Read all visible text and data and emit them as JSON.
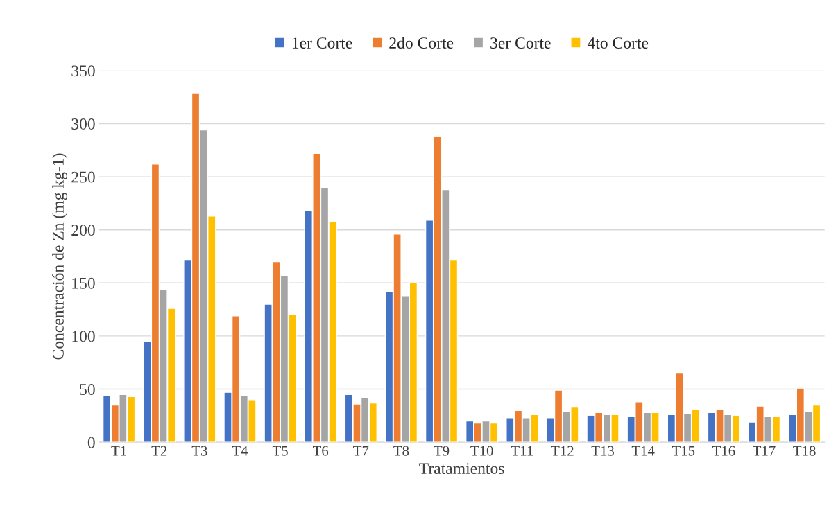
{
  "chart_data": {
    "type": "bar",
    "xlabel": "Tratamientos",
    "ylabel": "Concentración de Zn (mg kg-1)",
    "categories": [
      "T1",
      "T2",
      "T3",
      "T4",
      "T5",
      "T6",
      "T7",
      "T8",
      "T9",
      "T10",
      "T11",
      "T12",
      "T13",
      "T14",
      "T15",
      "T16",
      "T17",
      "T18"
    ],
    "series": [
      {
        "name": "1er Corte",
        "color": "#4472c4",
        "values": [
          44,
          95,
          172,
          47,
          130,
          218,
          45,
          142,
          209,
          20,
          23,
          23,
          25,
          24,
          26,
          28,
          19,
          26
        ]
      },
      {
        "name": "2do Corte",
        "color": "#ed7d31",
        "values": [
          35,
          262,
          329,
          119,
          170,
          272,
          36,
          196,
          288,
          18,
          30,
          49,
          28,
          38,
          65,
          31,
          34,
          51
        ]
      },
      {
        "name": "3er Corte",
        "color": "#a5a5a5",
        "values": [
          45,
          144,
          294,
          44,
          157,
          240,
          42,
          138,
          238,
          20,
          23,
          29,
          26,
          28,
          27,
          26,
          24,
          29
        ]
      },
      {
        "name": "4to Corte",
        "color": "#ffc000",
        "values": [
          43,
          126,
          213,
          40,
          120,
          208,
          37,
          150,
          172,
          18,
          26,
          33,
          26,
          28,
          31,
          25,
          24,
          35
        ]
      }
    ],
    "ylim": [
      0,
      350
    ],
    "yticks": [
      0,
      50,
      100,
      150,
      200,
      250,
      300,
      350
    ],
    "grid": "y",
    "legend": "top"
  }
}
